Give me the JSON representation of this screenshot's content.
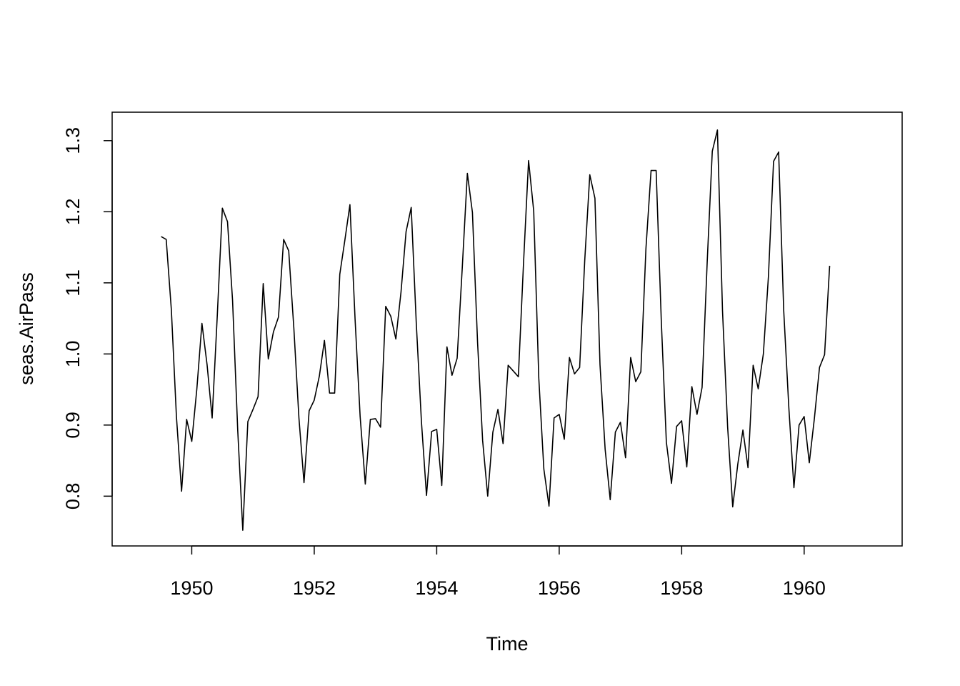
{
  "chart_data": {
    "type": "line",
    "title": "",
    "xlabel": "Time",
    "ylabel": "seas.AirPass",
    "xlim": [
      1948.7,
      1961.6
    ],
    "ylim": [
      0.73,
      1.34
    ],
    "x_ticks": [
      1950,
      1952,
      1954,
      1956,
      1958,
      1960
    ],
    "x_tick_labels": [
      "1950",
      "1952",
      "1954",
      "1956",
      "1958",
      "1960"
    ],
    "y_ticks": [
      0.8,
      0.9,
      1.0,
      1.1,
      1.2,
      1.3
    ],
    "y_tick_labels": [
      "0.8",
      "0.9",
      "1.0",
      "1.1",
      "1.2",
      "1.3"
    ],
    "grid": false,
    "line_color": "#000000",
    "x_start": 1949.5,
    "x_step": 0.0833333,
    "series": [
      {
        "values": [
          1.165,
          1.161,
          1.062,
          0.912,
          0.807,
          0.908,
          0.877,
          0.951,
          1.043,
          0.985,
          0.91,
          1.054,
          1.205,
          1.186,
          1.075,
          0.893,
          0.752,
          0.905,
          0.922,
          0.94,
          1.099,
          0.993,
          1.031,
          1.052,
          1.161,
          1.145,
          1.036,
          0.91,
          0.819,
          0.92,
          0.935,
          0.969,
          1.019,
          0.945,
          0.945,
          1.112,
          1.16,
          1.21,
          1.049,
          0.912,
          0.817,
          0.908,
          0.909,
          0.897,
          1.067,
          1.053,
          1.021,
          1.087,
          1.172,
          1.206,
          1.043,
          0.905,
          0.801,
          0.891,
          0.894,
          0.815,
          1.01,
          0.97,
          0.994,
          1.12,
          1.254,
          1.199,
          1.016,
          0.878,
          0.8,
          0.89,
          0.922,
          0.874,
          0.984,
          0.976,
          0.968,
          1.127,
          1.272,
          1.201,
          0.966,
          0.838,
          0.786,
          0.91,
          0.915,
          0.88,
          0.995,
          0.972,
          0.981,
          1.131,
          1.252,
          1.219,
          0.985,
          0.866,
          0.795,
          0.89,
          0.904,
          0.854,
          0.995,
          0.961,
          0.975,
          1.148,
          1.258,
          1.258,
          1.047,
          0.876,
          0.818,
          0.898,
          0.906,
          0.841,
          0.954,
          0.915,
          0.953,
          1.13,
          1.285,
          1.315,
          1.061,
          0.897,
          0.785,
          0.845,
          0.893,
          0.84,
          0.984,
          0.951,
          1.0,
          1.109,
          1.271,
          1.284,
          1.061,
          0.924,
          0.812,
          0.9,
          0.912,
          0.847,
          0.909,
          0.981,
          0.999,
          1.124
        ]
      }
    ]
  }
}
